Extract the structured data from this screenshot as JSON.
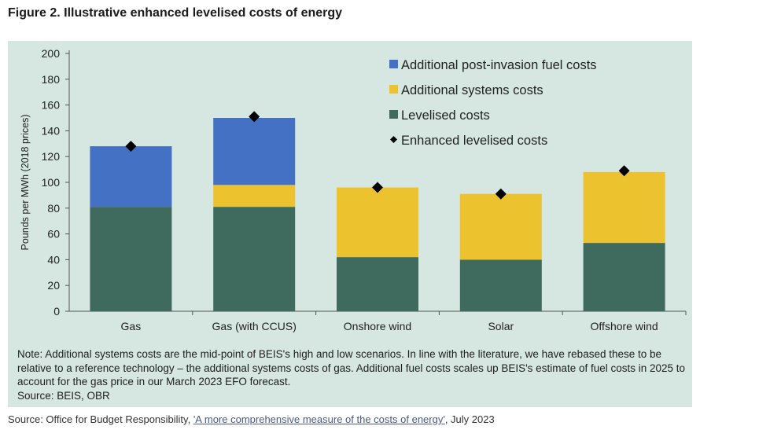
{
  "figure_title": "Figure 2. Illustrative enhanced levelised costs of energy",
  "note": "Note: Additional systems costs are the mid-point of BEIS's high and low scenarios. In line with the literature, we have rebased these to be relative to a reference technology – the additional systems costs of gas. Additional fuel costs scales up BEIS's estimate of fuel costs in 2025 to account for the gas price in our March 2023 EFO forecast.",
  "note_source": "Source: BEIS, OBR",
  "source": {
    "prefix": "Source: Office for Budget Responsibility, ",
    "link_text": "'A more comprehensive measure of the costs of energy'",
    "suffix": ", July 2023"
  },
  "colors": {
    "levelised": "#3f6b5e",
    "systems": "#ecc22e",
    "fuel": "#4471c4",
    "marker": "#000000"
  },
  "chart_data": {
    "type": "bar",
    "stacked": true,
    "title": "",
    "xlabel": "",
    "ylabel": "Pounds per MWh (2018 prices)",
    "ylim": [
      0,
      200
    ],
    "yticks": [
      0,
      20,
      40,
      60,
      80,
      100,
      120,
      140,
      160,
      180,
      200
    ],
    "categories": [
      "Gas",
      "Gas (with CCUS)",
      "Onshore wind",
      "Solar",
      "Offshore wind"
    ],
    "series": [
      {
        "name": "Levelised costs",
        "values": [
          81,
          81,
          42,
          40,
          53
        ]
      },
      {
        "name": "Additional systems costs",
        "values": [
          0,
          17,
          54,
          51,
          55
        ]
      },
      {
        "name": "Additional post-invasion fuel costs",
        "values": [
          47,
          52,
          0,
          0,
          0
        ]
      }
    ],
    "markers": {
      "name": "Enhanced levelised costs",
      "values": [
        128,
        151,
        96,
        91,
        109
      ]
    },
    "legend": {
      "position": "top-right",
      "entries": [
        "Additional post-invasion fuel costs",
        "Additional systems costs",
        "Levelised costs",
        "Enhanced levelised costs"
      ]
    }
  }
}
